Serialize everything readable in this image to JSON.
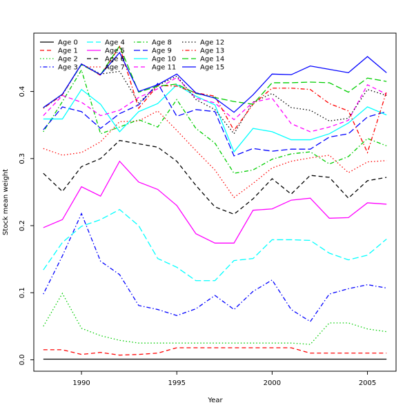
{
  "chart_data": {
    "type": "line",
    "title": "",
    "xlabel": "Year",
    "ylabel": "Stock mean weight",
    "xlim": [
      1987.5,
      2006.5
    ],
    "ylim": [
      -0.017,
      0.487
    ],
    "x_ticks": [
      1990,
      1995,
      2000,
      2005
    ],
    "y_ticks": [
      0.0,
      0.1,
      0.2,
      0.3,
      0.4
    ],
    "grid": false,
    "legend_position": "top-left",
    "x": [
      1988,
      1989,
      1990,
      1991,
      1992,
      1993,
      1994,
      1995,
      1996,
      1997,
      1998,
      1999,
      2000,
      2001,
      2002,
      2003,
      2004,
      2005,
      2006
    ],
    "series": [
      {
        "name": "Age 0",
        "color": "#000000",
        "dash": "solid",
        "values": [
          0.001,
          0.001,
          0.001,
          0.001,
          0.001,
          0.001,
          0.001,
          0.001,
          0.001,
          0.001,
          0.001,
          0.001,
          0.001,
          0.001,
          0.001,
          0.001,
          0.001,
          0.001,
          0.001
        ]
      },
      {
        "name": "Age 1",
        "color": "#ff0000",
        "dash": "dashed",
        "values": [
          0.015,
          0.015,
          0.008,
          0.011,
          0.007,
          0.008,
          0.01,
          0.018,
          0.018,
          0.018,
          0.018,
          0.018,
          0.018,
          0.018,
          0.01,
          0.01,
          0.01,
          0.01,
          0.01
        ]
      },
      {
        "name": "Age 2",
        "color": "#00cd00",
        "dash": "dotted",
        "values": [
          0.05,
          0.099,
          0.047,
          0.036,
          0.029,
          0.025,
          0.025,
          0.025,
          0.025,
          0.025,
          0.025,
          0.025,
          0.025,
          0.025,
          0.023,
          0.055,
          0.055,
          0.046,
          0.042
        ]
      },
      {
        "name": "Age 3",
        "color": "#0000ff",
        "dash": "dotdash",
        "values": [
          0.098,
          0.155,
          0.218,
          0.147,
          0.127,
          0.081,
          0.075,
          0.066,
          0.076,
          0.096,
          0.075,
          0.102,
          0.119,
          0.075,
          0.057,
          0.098,
          0.106,
          0.112,
          0.107
        ]
      },
      {
        "name": "Age 4",
        "color": "#00ffff",
        "dash": "longdash",
        "values": [
          0.134,
          0.175,
          0.199,
          0.209,
          0.224,
          0.2,
          0.151,
          0.138,
          0.118,
          0.118,
          0.148,
          0.151,
          0.179,
          0.179,
          0.178,
          0.159,
          0.149,
          0.156,
          0.18
        ]
      },
      {
        "name": "Age 5",
        "color": "#ff00ff",
        "dash": "solid",
        "values": [
          0.197,
          0.209,
          0.258,
          0.244,
          0.296,
          0.265,
          0.254,
          0.23,
          0.188,
          0.174,
          0.174,
          0.223,
          0.225,
          0.238,
          0.241,
          0.211,
          0.212,
          0.234,
          0.232
        ]
      },
      {
        "name": "Age 6",
        "color": "#000000",
        "dash": "dashed",
        "values": [
          0.278,
          0.251,
          0.288,
          0.3,
          0.327,
          0.322,
          0.317,
          0.296,
          0.26,
          0.228,
          0.217,
          0.24,
          0.27,
          0.247,
          0.275,
          0.272,
          0.241,
          0.267,
          0.272
        ]
      },
      {
        "name": "Age 7",
        "color": "#ff0000",
        "dash": "dotted",
        "values": [
          0.315,
          0.305,
          0.309,
          0.325,
          0.355,
          0.356,
          0.371,
          0.342,
          0.312,
          0.283,
          0.242,
          0.263,
          0.286,
          0.296,
          0.301,
          0.305,
          0.279,
          0.295,
          0.297
        ]
      },
      {
        "name": "Age 8",
        "color": "#00cd00",
        "dash": "dotdash",
        "values": [
          0.34,
          0.385,
          0.432,
          0.337,
          0.347,
          0.358,
          0.347,
          0.388,
          0.345,
          0.323,
          0.278,
          0.283,
          0.299,
          0.307,
          0.31,
          0.292,
          0.303,
          0.33,
          0.319
        ]
      },
      {
        "name": "Age 9",
        "color": "#0000ff",
        "dash": "longdash",
        "values": [
          0.343,
          0.377,
          0.37,
          0.345,
          0.367,
          0.38,
          0.412,
          0.363,
          0.373,
          0.37,
          0.304,
          0.315,
          0.311,
          0.314,
          0.314,
          0.332,
          0.337,
          0.362,
          0.37
        ]
      },
      {
        "name": "Age 10",
        "color": "#00ffff",
        "dash": "solid",
        "values": [
          0.359,
          0.359,
          0.403,
          0.381,
          0.34,
          0.37,
          0.382,
          0.41,
          0.393,
          0.38,
          0.31,
          0.345,
          0.34,
          0.328,
          0.328,
          0.337,
          0.353,
          0.377,
          0.365
        ]
      },
      {
        "name": "Age 11",
        "color": "#ff00ff",
        "dash": "dashed",
        "values": [
          0.364,
          0.394,
          0.384,
          0.364,
          0.372,
          0.391,
          0.404,
          0.421,
          0.39,
          0.383,
          0.358,
          0.384,
          0.39,
          0.352,
          0.34,
          0.347,
          0.357,
          0.41,
          0.396
        ]
      },
      {
        "name": "Age 12",
        "color": "#000000",
        "dash": "dotted",
        "values": [
          0.375,
          0.395,
          0.441,
          0.426,
          0.43,
          0.383,
          0.409,
          0.423,
          0.388,
          0.373,
          0.337,
          0.384,
          0.397,
          0.376,
          0.372,
          0.356,
          0.36,
          0.403,
          0.394
        ]
      },
      {
        "name": "Age 13",
        "color": "#ff0000",
        "dash": "dotdash",
        "values": [
          0.375,
          0.395,
          0.441,
          0.424,
          0.467,
          0.375,
          0.409,
          0.408,
          0.398,
          0.393,
          0.342,
          0.381,
          0.405,
          0.405,
          0.403,
          0.382,
          0.371,
          0.309,
          0.4
        ]
      },
      {
        "name": "Age 14",
        "color": "#00cd00",
        "dash": "longdash",
        "values": [
          0.376,
          0.396,
          0.44,
          0.425,
          0.468,
          0.399,
          0.408,
          0.411,
          0.397,
          0.391,
          0.385,
          0.381,
          0.413,
          0.413,
          0.414,
          0.413,
          0.399,
          0.42,
          0.415
        ]
      },
      {
        "name": "Age 15",
        "color": "#0000ff",
        "dash": "solid",
        "values": [
          0.376,
          0.396,
          0.441,
          0.425,
          0.458,
          0.4,
          0.41,
          0.426,
          0.398,
          0.39,
          0.369,
          0.395,
          0.426,
          0.425,
          0.438,
          0.433,
          0.428,
          0.452,
          0.428
        ]
      }
    ]
  }
}
